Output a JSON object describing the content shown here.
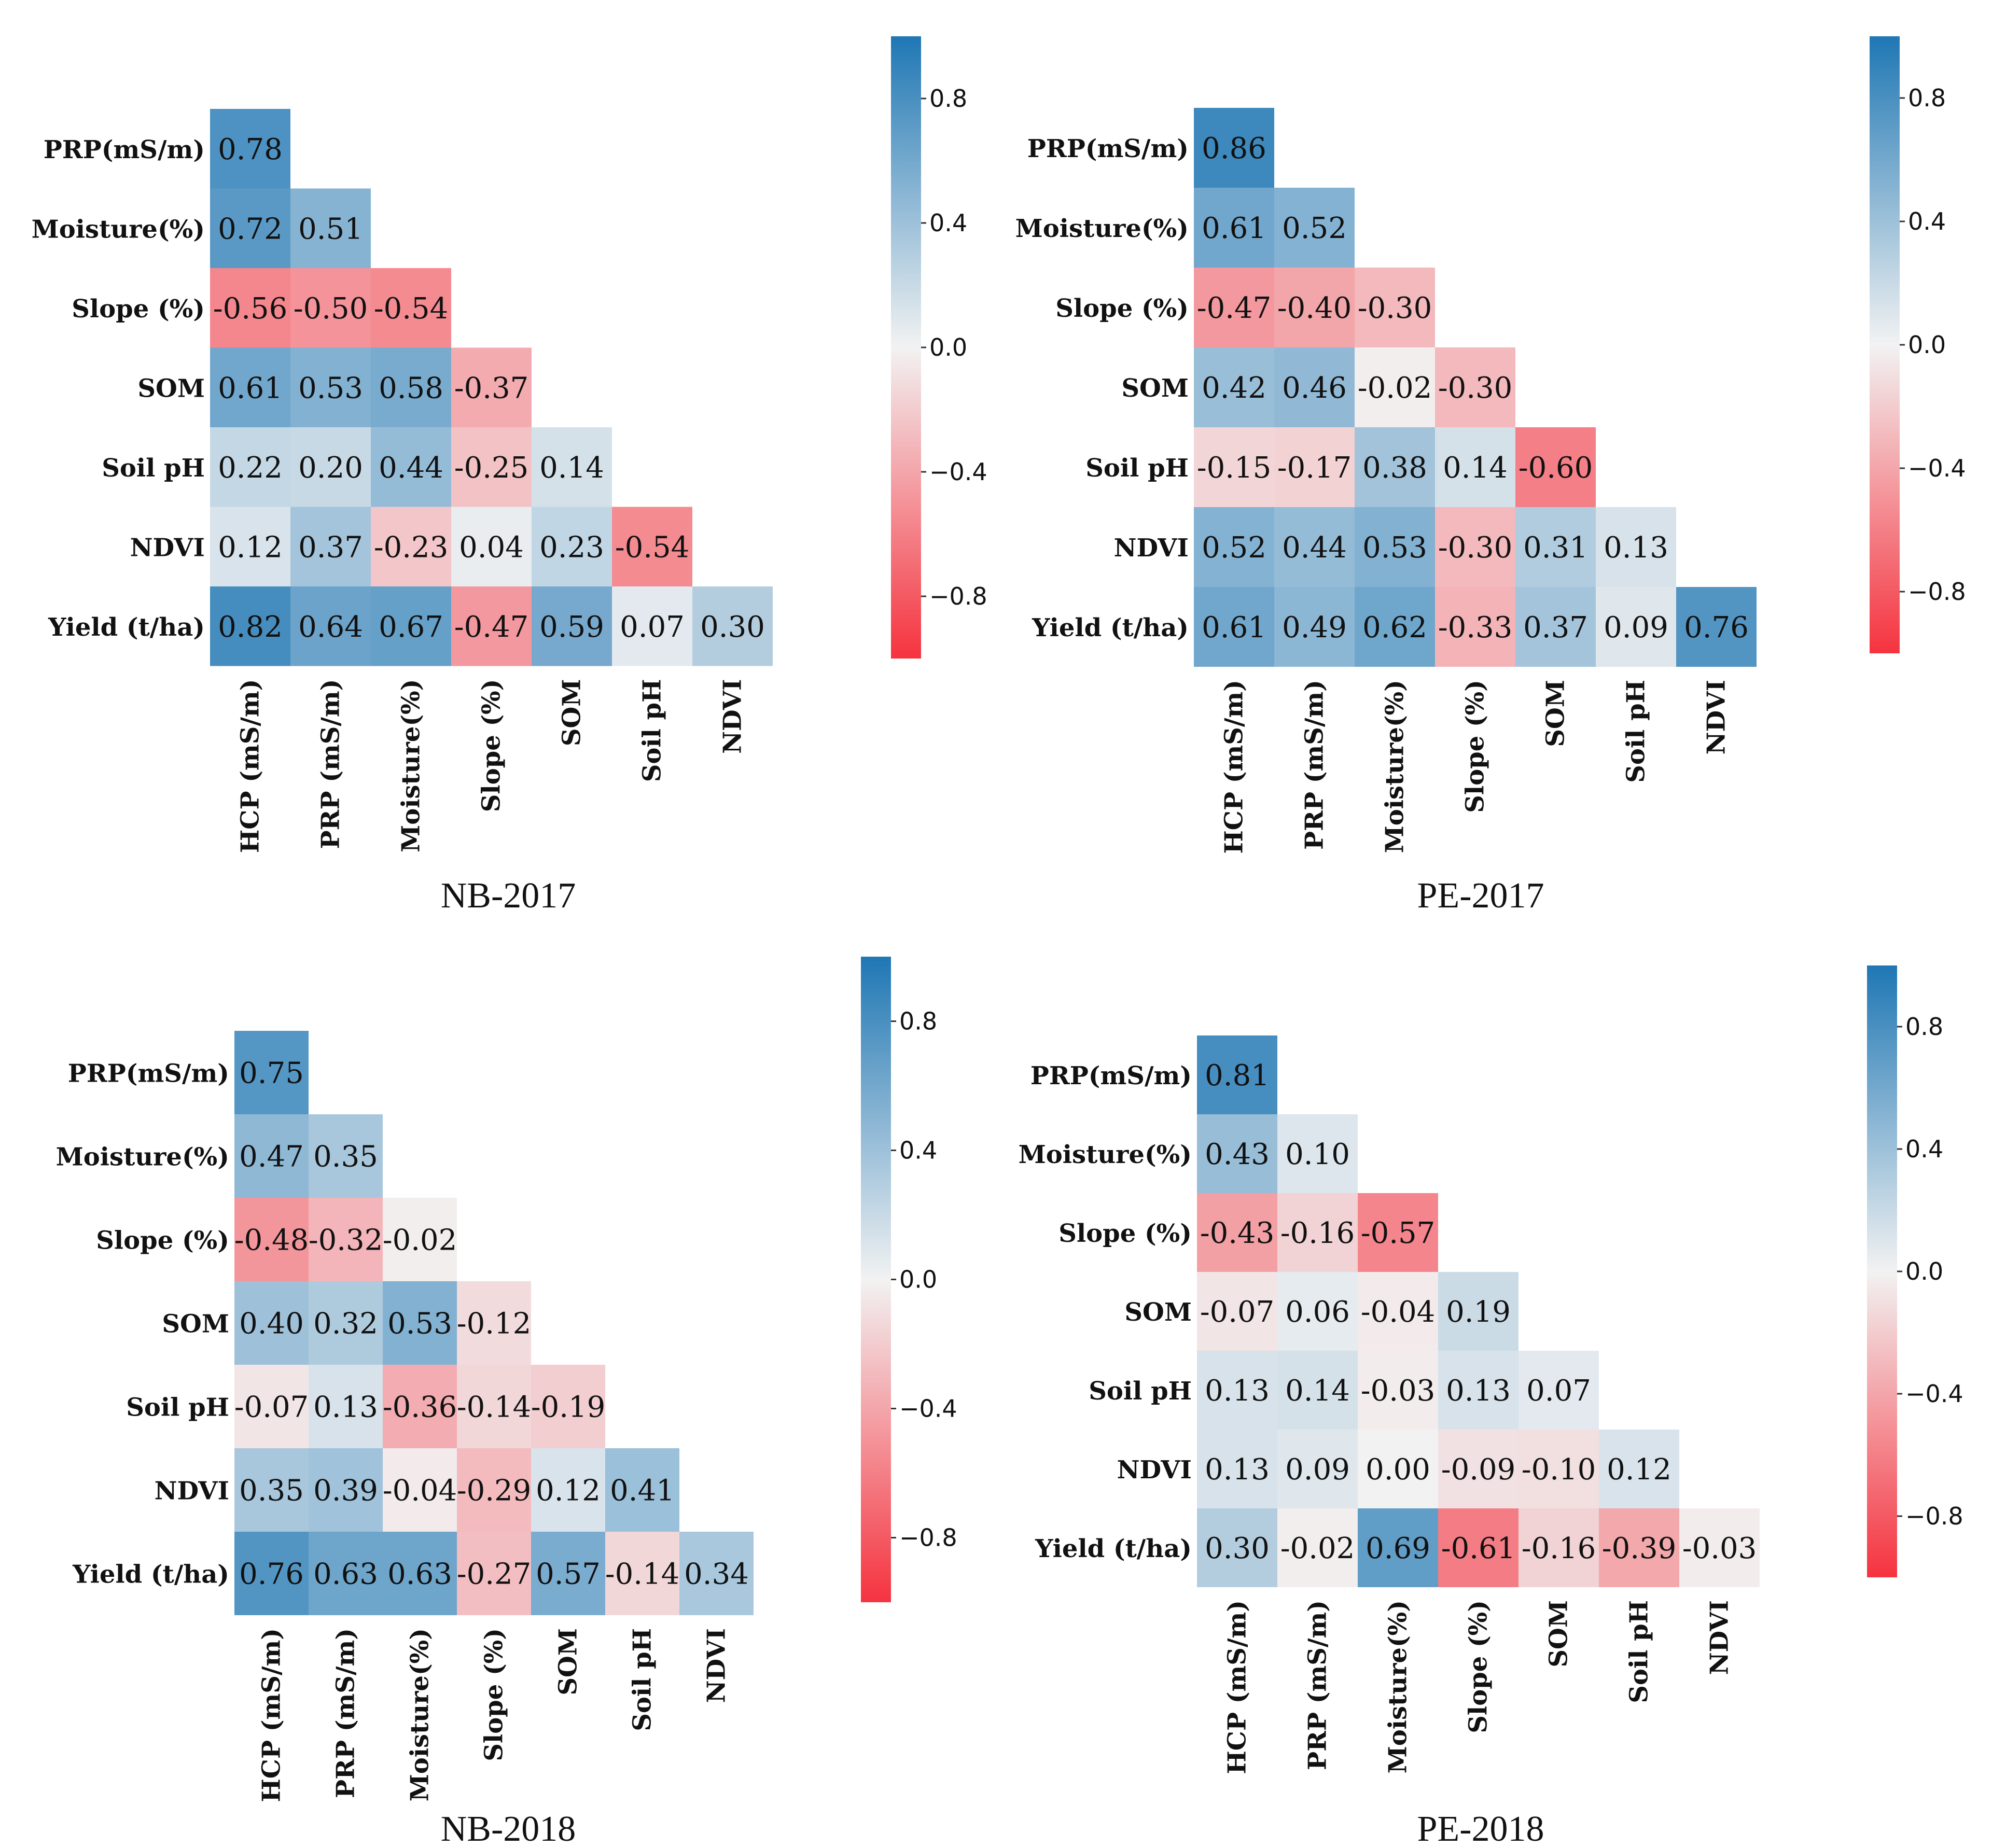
{
  "chart_data": [
    {
      "type": "heatmap",
      "title": "NB-2017",
      "row_labels": [
        "PRP(mS/m)",
        "Moisture(%)",
        "Slope (%)",
        "SOM",
        "Soil pH",
        "NDVI",
        "Yield (t/ha)"
      ],
      "column_labels": [
        "HCP (mS/m)",
        "PRP (mS/m)",
        "Moisture(%)",
        "Slope (%)",
        "SOM",
        "Soil pH",
        "NDVI"
      ],
      "values": [
        [
          "0.78"
        ],
        [
          "0.72",
          "0.51"
        ],
        [
          "-0.56",
          "-0.50",
          "-0.54"
        ],
        [
          "0.61",
          "0.53",
          "0.58",
          "-0.37"
        ],
        [
          "0.22",
          "0.20",
          "0.44",
          "-0.25",
          "0.14"
        ],
        [
          "0.12",
          "0.37",
          "-0.23",
          "0.04",
          "0.23",
          "-0.54"
        ],
        [
          "0.82",
          "0.64",
          "0.67",
          "-0.47",
          "0.59",
          "0.07",
          "0.30"
        ]
      ],
      "colorbar": {
        "range": [
          -1,
          1
        ],
        "ticks": [
          "0.8",
          "0.4",
          "0.0",
          "−0.4",
          "−0.8"
        ]
      }
    },
    {
      "type": "heatmap",
      "title": "PE-2017",
      "row_labels": [
        "PRP(mS/m)",
        "Moisture(%)",
        "Slope (%)",
        "SOM",
        "Soil pH",
        "NDVI",
        "Yield (t/ha)"
      ],
      "column_labels": [
        "HCP (mS/m)",
        "PRP (mS/m)",
        "Moisture(%)",
        "Slope (%)",
        "SOM",
        "Soil pH",
        "NDVI"
      ],
      "values": [
        [
          "0.86"
        ],
        [
          "0.61",
          "0.52"
        ],
        [
          "-0.47",
          "-0.40",
          "-0.30"
        ],
        [
          "0.42",
          "0.46",
          "-0.02",
          "-0.30"
        ],
        [
          "-0.15",
          "-0.17",
          "0.38",
          "0.14",
          "-0.60"
        ],
        [
          "0.52",
          "0.44",
          "0.53",
          "-0.30",
          "0.31",
          "0.13"
        ],
        [
          "0.61",
          "0.49",
          "0.62",
          "-0.33",
          "0.37",
          "0.09",
          "0.76"
        ]
      ],
      "colorbar": {
        "range": [
          -1,
          1
        ],
        "ticks": [
          "0.8",
          "0.4",
          "0.0",
          "−0.4",
          "−0.8"
        ]
      }
    },
    {
      "type": "heatmap",
      "title": "NB-2018",
      "row_labels": [
        "PRP(mS/m)",
        "Moisture(%)",
        "Slope (%)",
        "SOM",
        "Soil pH",
        "NDVI",
        "Yield (t/ha)"
      ],
      "column_labels": [
        "HCP (mS/m)",
        "PRP (mS/m)",
        "Moisture(%)",
        "Slope (%)",
        "SOM",
        "Soil pH",
        "NDVI"
      ],
      "values": [
        [
          "0.75"
        ],
        [
          "0.47",
          "0.35"
        ],
        [
          "-0.48",
          "-0.32",
          "-0.02"
        ],
        [
          "0.40",
          "0.32",
          "0.53",
          "-0.12"
        ],
        [
          "-0.07",
          "0.13",
          "-0.36",
          "-0.14",
          "-0.19"
        ],
        [
          "0.35",
          "0.39",
          "-0.04",
          "-0.29",
          "0.12",
          "0.41"
        ],
        [
          "0.76",
          "0.63",
          "0.63",
          "-0.27",
          "0.57",
          "-0.14",
          "0.34"
        ]
      ],
      "colorbar": {
        "range": [
          -1,
          1
        ],
        "ticks": [
          "0.8",
          "0.4",
          "0.0",
          "−0.4",
          "−0.8"
        ]
      }
    },
    {
      "type": "heatmap",
      "title": "PE-2018",
      "row_labels": [
        "PRP(mS/m)",
        "Moisture(%)",
        "Slope (%)",
        "SOM",
        "Soil pH",
        "NDVI",
        "Yield (t/ha)"
      ],
      "column_labels": [
        "HCP (mS/m)",
        "PRP (mS/m)",
        "Moisture(%)",
        "Slope (%)",
        "SOM",
        "Soil pH",
        "NDVI"
      ],
      "values": [
        [
          "0.81"
        ],
        [
          "0.43",
          "0.10"
        ],
        [
          "-0.43",
          "-0.16",
          "-0.57"
        ],
        [
          "-0.07",
          "0.06",
          "-0.04",
          "0.19"
        ],
        [
          "0.13",
          "0.14",
          "-0.03",
          "0.13",
          "0.07"
        ],
        [
          "0.13",
          "0.09",
          "0.00",
          "-0.09",
          "-0.10",
          "0.12"
        ],
        [
          "0.30",
          "-0.02",
          "0.69",
          "-0.61",
          "-0.16",
          "-0.39",
          "-0.03"
        ]
      ],
      "colorbar": {
        "range": [
          -1,
          1
        ],
        "ticks": [
          "0.8",
          "0.4",
          "0.0",
          "−0.4",
          "−0.8"
        ]
      }
    }
  ],
  "colors": {
    "positive": "#1f77b4",
    "neutral": "#f2f2f2",
    "negative": "#f5333f"
  }
}
